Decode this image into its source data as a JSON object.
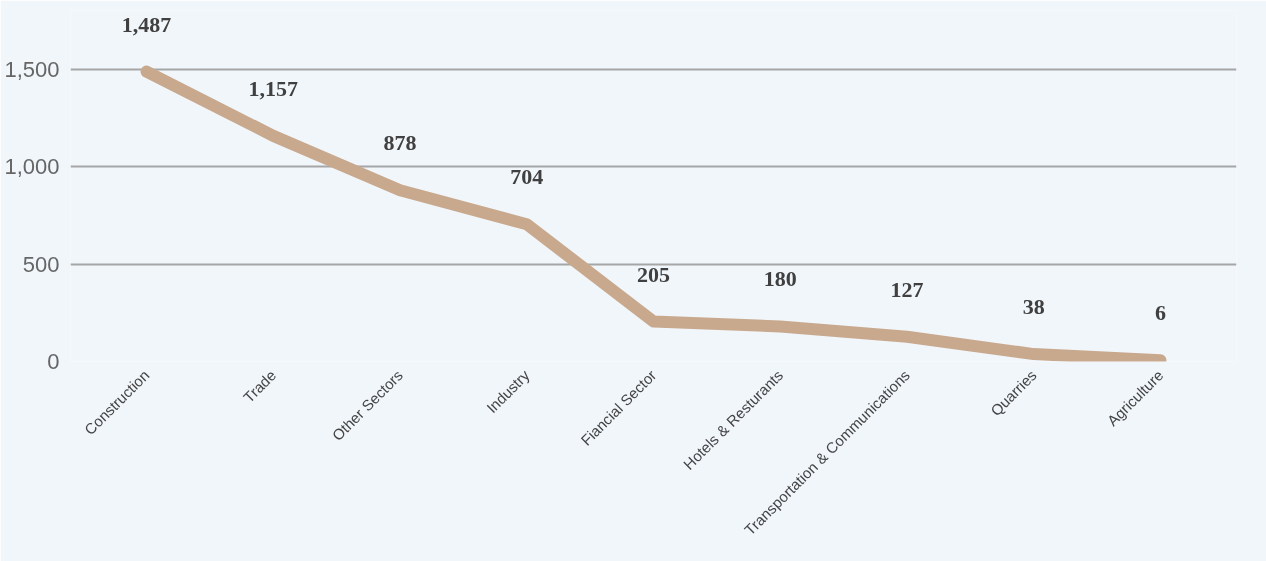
{
  "chart_data": {
    "type": "line",
    "categories": [
      "Construction",
      "Trade",
      "Other Sectors",
      "Industry",
      "Fiancial Sector",
      "Hotels & Resturants",
      "Transportation & Communications",
      "Quarries",
      "Agriculture"
    ],
    "series": [
      {
        "color": "#c9a98e",
        "values": [
          1487,
          1157,
          878,
          704,
          205,
          180,
          127,
          38,
          6
        ],
        "value_labels": [
          "1,487",
          "1,157",
          "878",
          "704",
          "205",
          "180",
          "127",
          "38",
          "6"
        ]
      }
    ],
    "ylim": [
      0,
      1800
    ],
    "yticks": [
      {
        "value": 0,
        "label": "0"
      },
      {
        "value": 500,
        "label": "500"
      },
      {
        "value": 1000,
        "label": "1,000"
      },
      {
        "value": 1500,
        "label": "1,500"
      }
    ],
    "grid": "y"
  }
}
